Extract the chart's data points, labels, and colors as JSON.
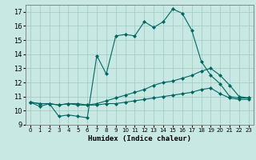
{
  "xlabel": "Humidex (Indice chaleur)",
  "xlim": [
    -0.5,
    23.5
  ],
  "ylim": [
    9,
    17.5
  ],
  "yticks": [
    9,
    10,
    11,
    12,
    13,
    14,
    15,
    16,
    17
  ],
  "xticks": [
    0,
    1,
    2,
    3,
    4,
    5,
    6,
    7,
    8,
    9,
    10,
    11,
    12,
    13,
    14,
    15,
    16,
    17,
    18,
    19,
    20,
    21,
    22,
    23
  ],
  "background_color": "#c8e8e4",
  "grid_color": "#a0c8c4",
  "line_color": "#006860",
  "lines": [
    {
      "x": [
        0,
        1,
        2,
        3,
        4,
        5,
        6,
        7,
        8,
        9,
        10,
        11,
        12,
        13,
        14,
        15,
        16,
        17,
        18,
        19,
        20,
        21,
        22,
        23
      ],
      "y": [
        10.6,
        10.3,
        10.5,
        9.6,
        9.7,
        9.6,
        9.5,
        13.9,
        12.6,
        15.3,
        15.4,
        15.3,
        16.3,
        15.9,
        16.3,
        17.2,
        16.9,
        15.7,
        13.5,
        12.5,
        11.9,
        11.0,
        10.9,
        10.9
      ]
    },
    {
      "x": [
        0,
        1,
        2,
        3,
        4,
        5,
        6,
        7,
        8,
        9,
        10,
        11,
        12,
        13,
        14,
        15,
        16,
        17,
        18,
        19,
        20,
        21,
        22,
        23
      ],
      "y": [
        10.6,
        10.5,
        10.5,
        10.4,
        10.5,
        10.5,
        10.4,
        10.5,
        10.7,
        10.9,
        11.1,
        11.3,
        11.5,
        11.8,
        12.0,
        12.1,
        12.3,
        12.5,
        12.8,
        13.0,
        12.5,
        11.8,
        11.0,
        10.9
      ]
    },
    {
      "x": [
        0,
        1,
        2,
        3,
        4,
        5,
        6,
        7,
        8,
        9,
        10,
        11,
        12,
        13,
        14,
        15,
        16,
        17,
        18,
        19,
        20,
        21,
        22,
        23
      ],
      "y": [
        10.6,
        10.5,
        10.5,
        10.4,
        10.5,
        10.4,
        10.4,
        10.4,
        10.5,
        10.5,
        10.6,
        10.7,
        10.8,
        10.9,
        11.0,
        11.1,
        11.2,
        11.3,
        11.5,
        11.6,
        11.2,
        10.9,
        10.8,
        10.8
      ]
    }
  ]
}
